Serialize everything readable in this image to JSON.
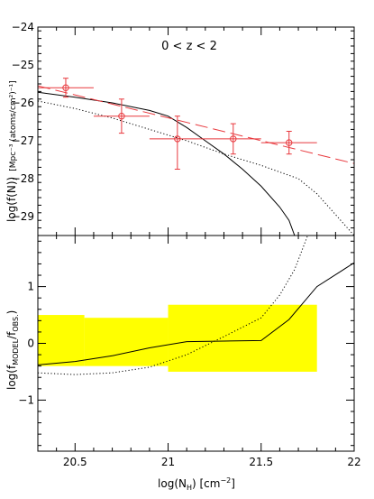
{
  "chart_data": [
    {
      "panel": "top",
      "type": "line",
      "annotation": "0 < z < 2",
      "xlabel": "log(N_H) [cm^-2]",
      "ylabel": "log(f(N)) [Mpc^-3 (atoms/cm^2)^-1]",
      "ylabel_main": "log(f(N))",
      "ylabel_units": "[Mpc⁻³ (atoms/cm²)⁻¹]",
      "xlim": [
        20.3,
        22.0
      ],
      "ylim": [
        -29.5,
        -24.0
      ],
      "y_ticks": [
        -24,
        -25,
        -26,
        -27,
        -28,
        -29
      ],
      "y_tick_labels": [
        "−24",
        "−25",
        "−26",
        "−27",
        "−28",
        "−29"
      ],
      "series": [
        {
          "style": "solid-black",
          "x": [
            20.3,
            20.5,
            20.7,
            20.9,
            21.0,
            21.1,
            21.2,
            21.3,
            21.4,
            21.5,
            21.6,
            21.65,
            21.68
          ],
          "y": [
            -25.72,
            -25.85,
            -26.0,
            -26.2,
            -26.35,
            -26.65,
            -27.0,
            -27.35,
            -27.75,
            -28.2,
            -28.75,
            -29.1,
            -29.5
          ]
        },
        {
          "style": "dotted-black",
          "x": [
            20.3,
            20.5,
            20.7,
            20.9,
            21.1,
            21.3,
            21.5,
            21.7,
            21.8,
            21.9,
            22.0
          ],
          "y": [
            -25.95,
            -26.15,
            -26.4,
            -26.7,
            -27.0,
            -27.35,
            -27.65,
            -28.0,
            -28.4,
            -28.95,
            -29.5
          ]
        },
        {
          "style": "dashed-red",
          "x": [
            20.3,
            22.0
          ],
          "y": [
            -25.55,
            -27.6
          ]
        }
      ],
      "points": [
        {
          "x": 20.45,
          "y": -25.6,
          "xerr": 0.15,
          "yerr_low": 0.25,
          "yerr_high": 0.25
        },
        {
          "x": 20.75,
          "y": -26.35,
          "xerr": 0.15,
          "yerr_low": 0.45,
          "yerr_high": 0.45
        },
        {
          "x": 21.05,
          "y": -26.95,
          "xerr": 0.15,
          "yerr_low": 0.8,
          "yerr_high": 0.6
        },
        {
          "x": 21.35,
          "y": -26.95,
          "xerr": 0.15,
          "yerr_low": 0.4,
          "yerr_high": 0.4
        },
        {
          "x": 21.65,
          "y": -27.05,
          "xerr": 0.15,
          "yerr_low": 0.3,
          "yerr_high": 0.3
        }
      ],
      "colors": {
        "points": "#e8383d",
        "dashed": "#e8383d",
        "model": "#000000"
      }
    },
    {
      "panel": "bottom",
      "type": "line",
      "xlabel": "log(N_H) [cm^-2]",
      "ylabel": "log(f_MODEL/f_OBS.)",
      "xlim": [
        20.3,
        22.0
      ],
      "ylim": [
        -1.9,
        1.9
      ],
      "x_ticks": [
        20.5,
        21,
        21.5,
        22
      ],
      "x_tick_labels": [
        "20.5",
        "21",
        "21.5",
        "22"
      ],
      "y_ticks": [
        1,
        0,
        -1
      ],
      "y_tick_labels": [
        "1",
        "0",
        "−1"
      ],
      "bands": [
        {
          "x0": 20.3,
          "x1": 20.55,
          "y0": -0.4,
          "y1": 0.5
        },
        {
          "x0": 20.55,
          "x1": 21.0,
          "y0": -0.4,
          "y1": 0.45
        },
        {
          "x0": 21.0,
          "x1": 21.8,
          "y0": -0.5,
          "y1": 0.68
        }
      ],
      "series": [
        {
          "style": "solid-black",
          "x": [
            20.3,
            20.5,
            20.7,
            20.9,
            21.1,
            21.3,
            21.5,
            21.65,
            21.8,
            22.0
          ],
          "y": [
            -0.38,
            -0.32,
            -0.22,
            -0.08,
            0.03,
            0.04,
            0.05,
            0.42,
            1.0,
            1.42
          ]
        },
        {
          "style": "dotted-black",
          "x": [
            20.3,
            20.5,
            20.7,
            20.9,
            21.1,
            21.3,
            21.5,
            21.6,
            21.68,
            21.75
          ],
          "y": [
            -0.52,
            -0.55,
            -0.52,
            -0.42,
            -0.2,
            0.12,
            0.45,
            0.85,
            1.3,
            1.9
          ]
        }
      ],
      "colors": {
        "band": "#ffff00",
        "model": "#000000"
      }
    }
  ]
}
